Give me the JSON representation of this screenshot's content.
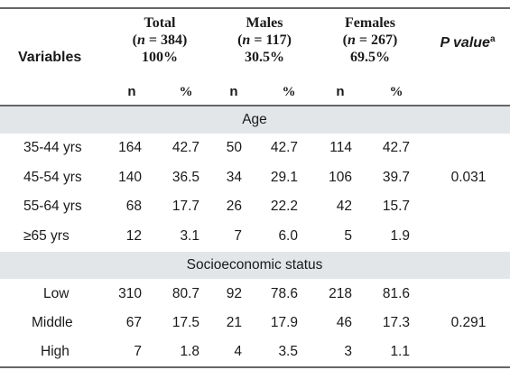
{
  "table": {
    "header": {
      "variables": "Variables",
      "groups": [
        {
          "name": "Total",
          "n_label": "n",
          "n_value": "= 384)",
          "pct": "100%"
        },
        {
          "name": "Males",
          "n_label": "n",
          "n_value": "= 117)",
          "pct": "30.5%"
        },
        {
          "name": "Females",
          "n_label": "n",
          "n_value": "= 267)",
          "pct": "69.5%"
        }
      ],
      "p_value": "P value",
      "p_value_sup": "a",
      "sub_n": "n",
      "sub_pct": "%"
    },
    "sections": [
      {
        "title": "Age",
        "p_value": "0.031",
        "rows": [
          {
            "label": "35-44 yrs",
            "values": [
              "164",
              "42.7",
              "50",
              "42.7",
              "114",
              "42.7"
            ]
          },
          {
            "label": "45-54 yrs",
            "values": [
              "140",
              "36.5",
              "34",
              "29.1",
              "106",
              "39.7"
            ]
          },
          {
            "label": "55-64 yrs",
            "values": [
              "68",
              "17.7",
              "26",
              "22.2",
              "42",
              "15.7"
            ]
          },
          {
            "label": "≥65 yrs",
            "values": [
              "12",
              "3.1",
              "7",
              "6.0",
              "5",
              "1.9"
            ]
          }
        ]
      },
      {
        "title": "Socioeconomic status",
        "p_value": "0.291",
        "rows": [
          {
            "label": "Low",
            "values": [
              "310",
              "80.7",
              "92",
              "78.6",
              "218",
              "81.6"
            ]
          },
          {
            "label": "Middle",
            "values": [
              "67",
              "17.5",
              "21",
              "17.9",
              "46",
              "17.3"
            ]
          },
          {
            "label": "High",
            "values": [
              "7",
              "1.8",
              "4",
              "3.5",
              "3",
              "1.1"
            ]
          }
        ]
      }
    ]
  }
}
